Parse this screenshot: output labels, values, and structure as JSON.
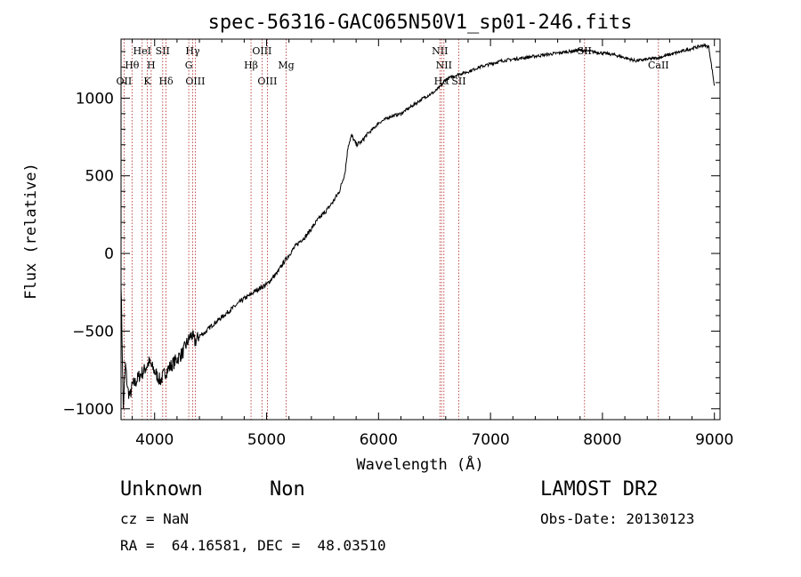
{
  "chart_data": {
    "type": "line",
    "title": "spec-56316-GAC065N50V1_sp01-246.fits",
    "xlabel": "Wavelength (Å)",
    "ylabel": "Flux (relative)",
    "xlim": [
      3700,
      9050
    ],
    "ylim": [
      -1070,
      1380
    ],
    "xticks": [
      4000,
      5000,
      6000,
      7000,
      8000,
      9000
    ],
    "yticks": [
      -1000,
      -500,
      0,
      500,
      1000
    ],
    "grid": false,
    "line_color": "#000000",
    "marker_color": "#b22222",
    "series": [
      {
        "x": [
          3700,
          3720,
          3740,
          3760,
          3780,
          3800,
          3830,
          3860,
          3900,
          3950,
          4000,
          4050,
          4100,
          4150,
          4200,
          4250,
          4300,
          4330,
          4360,
          4400,
          4450,
          4500,
          4550,
          4600,
          4650,
          4700,
          4750,
          4800,
          4850,
          4900,
          4950,
          5000,
          5050,
          5100,
          5150,
          5200,
          5250,
          5300,
          5350,
          5400,
          5450,
          5500,
          5550,
          5600,
          5650,
          5700,
          5730,
          5760,
          5800,
          5850,
          5900,
          5950,
          6000,
          6100,
          6200,
          6300,
          6400,
          6500,
          6560,
          6600,
          6700,
          6800,
          6900,
          7000,
          7100,
          7200,
          7300,
          7400,
          7500,
          7600,
          7700,
          7800,
          7900,
          8000,
          8100,
          8200,
          8300,
          8400,
          8500,
          8600,
          8700,
          8800,
          8900,
          8950,
          9000
        ],
        "y": [
          -180,
          -1000,
          -720,
          -880,
          -920,
          -850,
          -830,
          -790,
          -760,
          -700,
          -760,
          -820,
          -760,
          -720,
          -680,
          -640,
          -560,
          -520,
          -570,
          -530,
          -510,
          -470,
          -440,
          -410,
          -380,
          -350,
          -320,
          -290,
          -270,
          -240,
          -220,
          -200,
          -160,
          -120,
          -60,
          -10,
          40,
          80,
          110,
          160,
          210,
          250,
          290,
          340,
          400,
          520,
          700,
          760,
          700,
          720,
          770,
          800,
          840,
          880,
          900,
          950,
          1000,
          1040,
          1080,
          1120,
          1150,
          1170,
          1200,
          1220,
          1240,
          1250,
          1260,
          1270,
          1280,
          1290,
          1300,
          1310,
          1300,
          1290,
          1280,
          1260,
          1240,
          1250,
          1260,
          1280,
          1300,
          1320,
          1340,
          1330,
          1080
        ]
      }
    ],
    "annotations": [
      {
        "label": "OII",
        "x": 3727,
        "row": 3
      },
      {
        "label": "Hθ",
        "x": 3798,
        "row": 2
      },
      {
        "label": "HeI",
        "x": 3889,
        "row": 1
      },
      {
        "label": "K",
        "x": 3934,
        "row": 3
      },
      {
        "label": "H",
        "x": 3969,
        "row": 2
      },
      {
        "label": "SII",
        "x": 4072,
        "row": 1
      },
      {
        "label": "Hδ",
        "x": 4102,
        "row": 3
      },
      {
        "label": "Hγ",
        "x": 4340,
        "row": 1
      },
      {
        "label": "G",
        "x": 4305,
        "row": 2
      },
      {
        "label": "OIII",
        "x": 4363,
        "row": 3
      },
      {
        "label": "Hβ",
        "x": 4861,
        "row": 2
      },
      {
        "label": "OIII",
        "x": 4959,
        "row": 1
      },
      {
        "label": "OIII",
        "x": 5007,
        "row": 3
      },
      {
        "label": "Mg",
        "x": 5175,
        "row": 2
      },
      {
        "label": "NII",
        "x": 6548,
        "row": 1
      },
      {
        "label": "NII",
        "x": 6584,
        "row": 2
      },
      {
        "label": "Hα",
        "x": 6563,
        "row": 3
      },
      {
        "label": "SII",
        "x": 6717,
        "row": 3
      },
      {
        "label": "SII",
        "x": 7840,
        "row": 1
      },
      {
        "label": "CaII",
        "x": 8500,
        "row": 2
      }
    ]
  },
  "footer": {
    "object_class": "Unknown",
    "subclass": "Non",
    "survey": "LAMOST DR2",
    "cz": "cz = NaN",
    "obs_date": "Obs-Date: 20130123",
    "coords": "RA =  64.16581, DEC =  48.03510"
  }
}
